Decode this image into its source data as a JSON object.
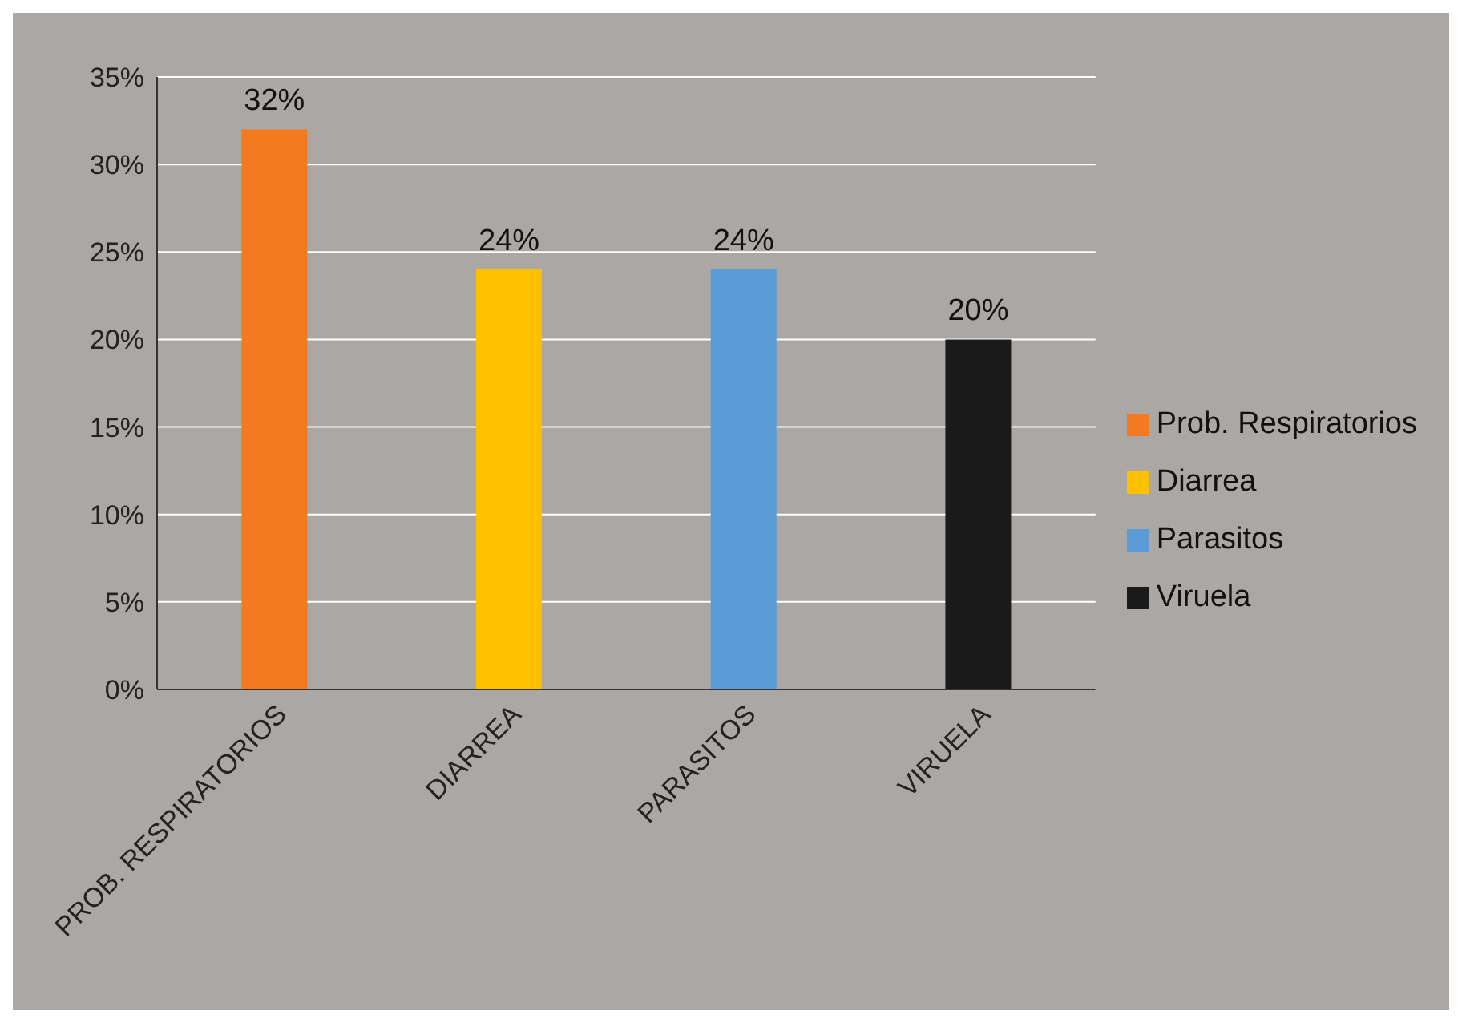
{
  "chart_data": {
    "type": "bar",
    "categories": [
      "PROB. RESPIRATORIOS",
      "DIARREA",
      "PARASITOS",
      "VIRUELA"
    ],
    "stacked": true,
    "series": [
      {
        "name": "Prob. Respiratorios",
        "color": "#f47a20",
        "values": [
          32,
          null,
          null,
          null
        ],
        "value_labels": [
          "32%",
          null,
          null,
          null
        ]
      },
      {
        "name": "Diarrea",
        "color": "#ffc000",
        "values": [
          null,
          24,
          null,
          null
        ],
        "value_labels": [
          null,
          "24%",
          null,
          null
        ]
      },
      {
        "name": "Parasitos",
        "color": "#5b9bd5",
        "values": [
          null,
          null,
          24,
          null
        ],
        "value_labels": [
          null,
          null,
          "24%",
          null
        ]
      },
      {
        "name": "Viruela",
        "color": "#1a1a1a",
        "values": [
          null,
          null,
          null,
          20
        ],
        "value_labels": [
          null,
          null,
          null,
          "20%"
        ]
      }
    ],
    "ylim": [
      0,
      35
    ],
    "yticks": [
      {
        "value": 0,
        "label": "0%"
      },
      {
        "value": 5,
        "label": "5%"
      },
      {
        "value": 10,
        "label": "10%"
      },
      {
        "value": 15,
        "label": "15%"
      },
      {
        "value": 20,
        "label": "20%"
      },
      {
        "value": 25,
        "label": "25%"
      },
      {
        "value": 30,
        "label": "30%"
      },
      {
        "value": 35,
        "label": "35%"
      }
    ],
    "grid": "y",
    "legend": "right"
  }
}
